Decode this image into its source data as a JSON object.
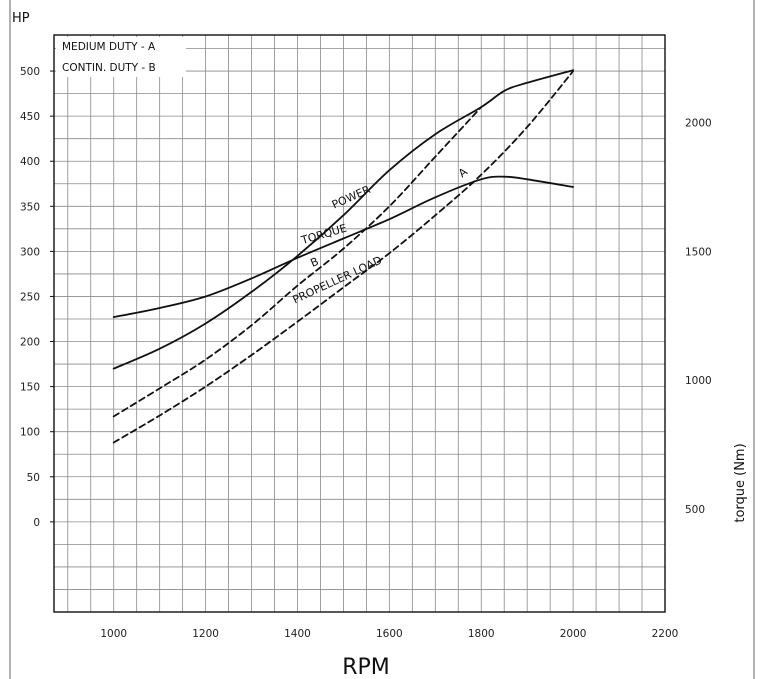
{
  "chart_data": {
    "type": "line",
    "xlabel": "RPM",
    "ylabel": "HP",
    "y2label": "torque (Nm)",
    "xlim": [
      870,
      2200
    ],
    "ylim": [
      -100,
      540
    ],
    "y2lim": [
      100,
      2340
    ],
    "x_ticks": [
      "1000",
      "1200",
      "1400",
      "1600",
      "1800",
      "2000",
      "2200"
    ],
    "y_ticks": [
      "0",
      "50",
      "100",
      "150",
      "200",
      "250",
      "300",
      "350",
      "400",
      "450",
      "500"
    ],
    "y2_ticks": [
      "500",
      "1000",
      "1500",
      "2000"
    ],
    "legend": [
      "MEDIUM DUTY - A",
      "CONTIN. DUTY - B"
    ],
    "legend_position": "top-left",
    "grid": true,
    "series": [
      {
        "name": "POWER",
        "axis": "hp",
        "style": "solid",
        "x": [
          1000,
          1100,
          1200,
          1300,
          1400,
          1500,
          1600,
          1700,
          1800,
          1850,
          1900,
          2000
        ],
        "values": [
          170,
          192,
          220,
          255,
          295,
          340,
          390,
          430,
          460,
          478,
          487,
          501
        ]
      },
      {
        "name": "B",
        "axis": "hp",
        "style": "dashed",
        "x": [
          1000,
          1100,
          1200,
          1300,
          1400,
          1500,
          1600,
          1700,
          1800
        ],
        "values": [
          117,
          148,
          180,
          218,
          262,
          303,
          350,
          405,
          460
        ]
      },
      {
        "name": "PROPELLER LOAD",
        "axis": "hp",
        "style": "dashed",
        "x": [
          1000,
          1100,
          1200,
          1300,
          1400,
          1500,
          1600,
          1700,
          1800,
          1900,
          2000
        ],
        "values": [
          88,
          118,
          150,
          185,
          222,
          260,
          298,
          340,
          385,
          438,
          500
        ]
      },
      {
        "name": "TORQUE",
        "axis": "torque",
        "style": "solid",
        "x": [
          1000,
          1100,
          1200,
          1300,
          1400,
          1500,
          1600,
          1700,
          1800,
          1850,
          1900,
          2000
        ],
        "values": [
          1245,
          1280,
          1325,
          1395,
          1475,
          1550,
          1625,
          1710,
          1780,
          1790,
          1780,
          1750
        ]
      }
    ],
    "annotations": [
      "POWER",
      "B",
      "A",
      "PROPELLER LOAD",
      "TORQUE"
    ]
  }
}
